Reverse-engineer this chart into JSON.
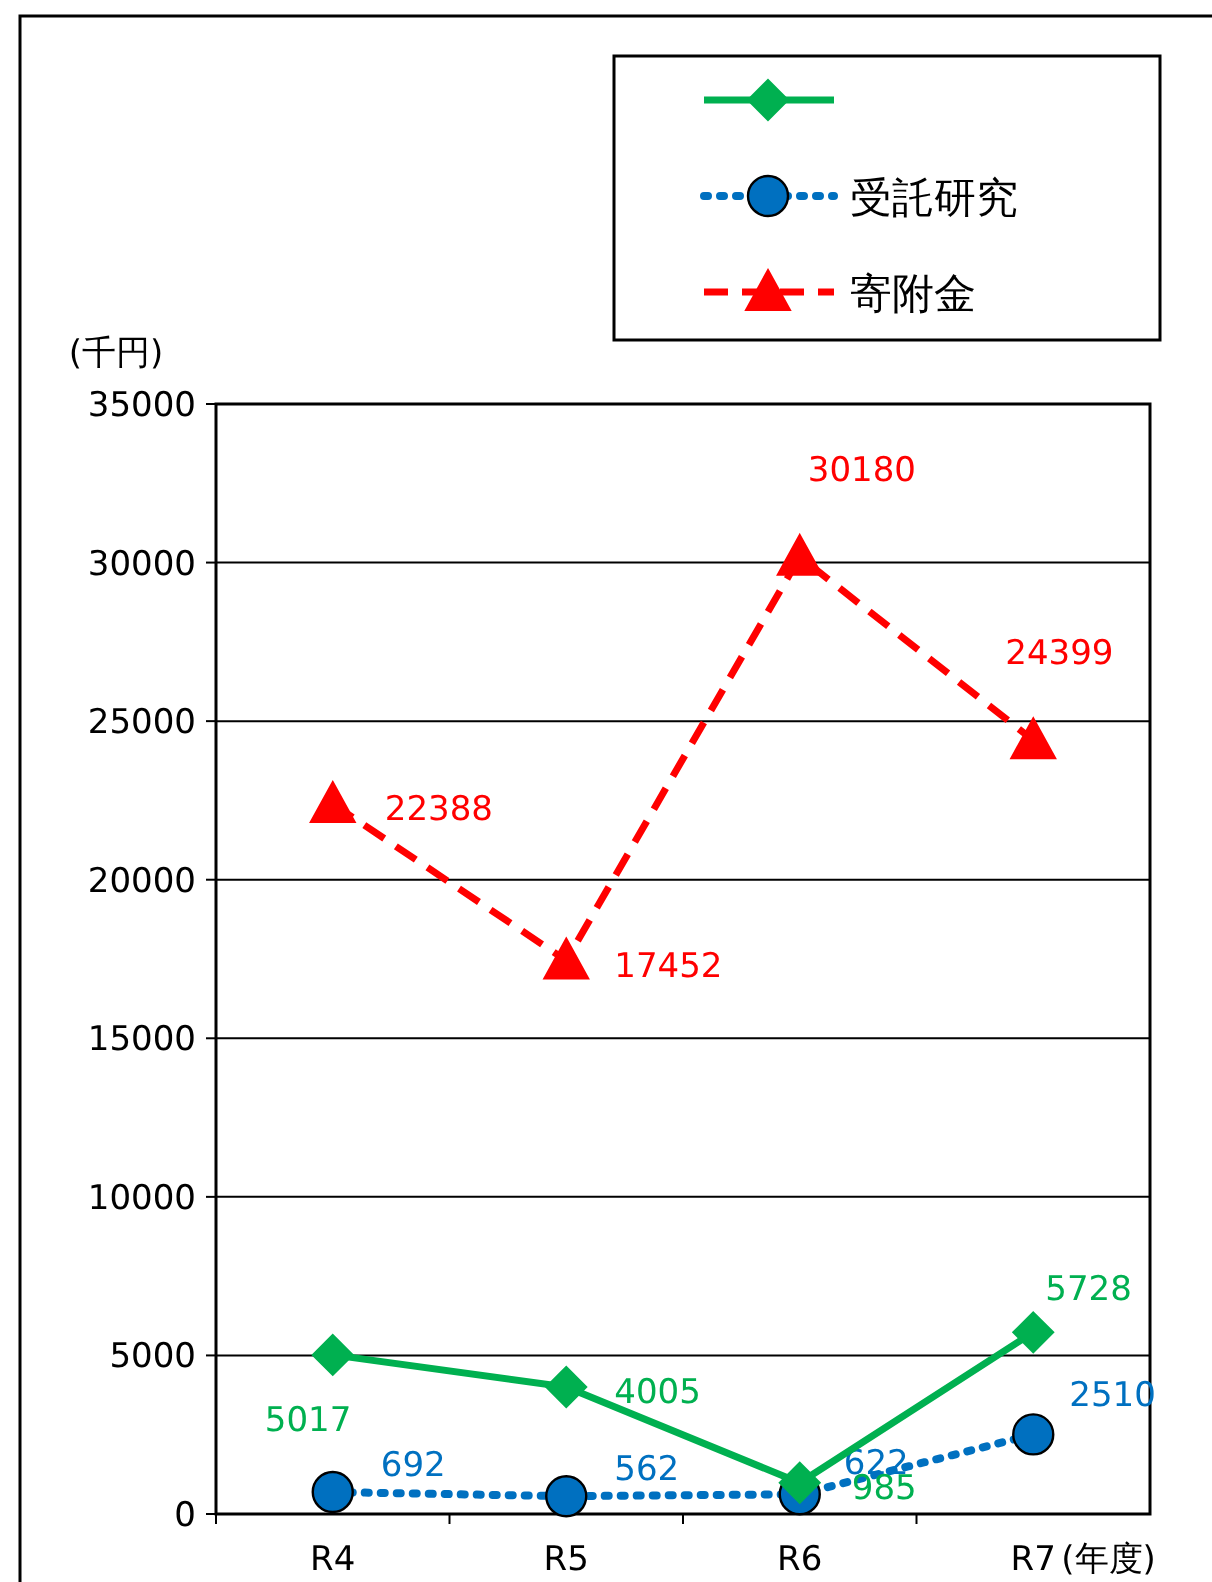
{
  "chart_data": {
    "type": "line",
    "categories": [
      "R4",
      "R5",
      "R6",
      "R7"
    ],
    "xlabel": "(年度)",
    "ylabel": "(千円)",
    "ylim": [
      0,
      35000
    ],
    "yticks": [
      0,
      5000,
      10000,
      15000,
      20000,
      25000,
      30000,
      35000
    ],
    "grid": "y",
    "legend": "top right",
    "data_labels": true,
    "series": [
      {
        "color": "#00b050",
        "marker": "diamond",
        "line_style": "solid",
        "values": [
          5017,
          4005,
          985,
          5728
        ]
      },
      {
        "name": "受託研究",
        "color": "#0070c0",
        "marker": "circle",
        "line_style": "dotted",
        "values": [
          692,
          562,
          622,
          2510
        ]
      },
      {
        "name": "寄附金",
        "color": "#ff0000",
        "marker": "triangle",
        "line_style": "dashed",
        "values": [
          22388,
          17452,
          30180,
          24399
        ]
      }
    ]
  }
}
